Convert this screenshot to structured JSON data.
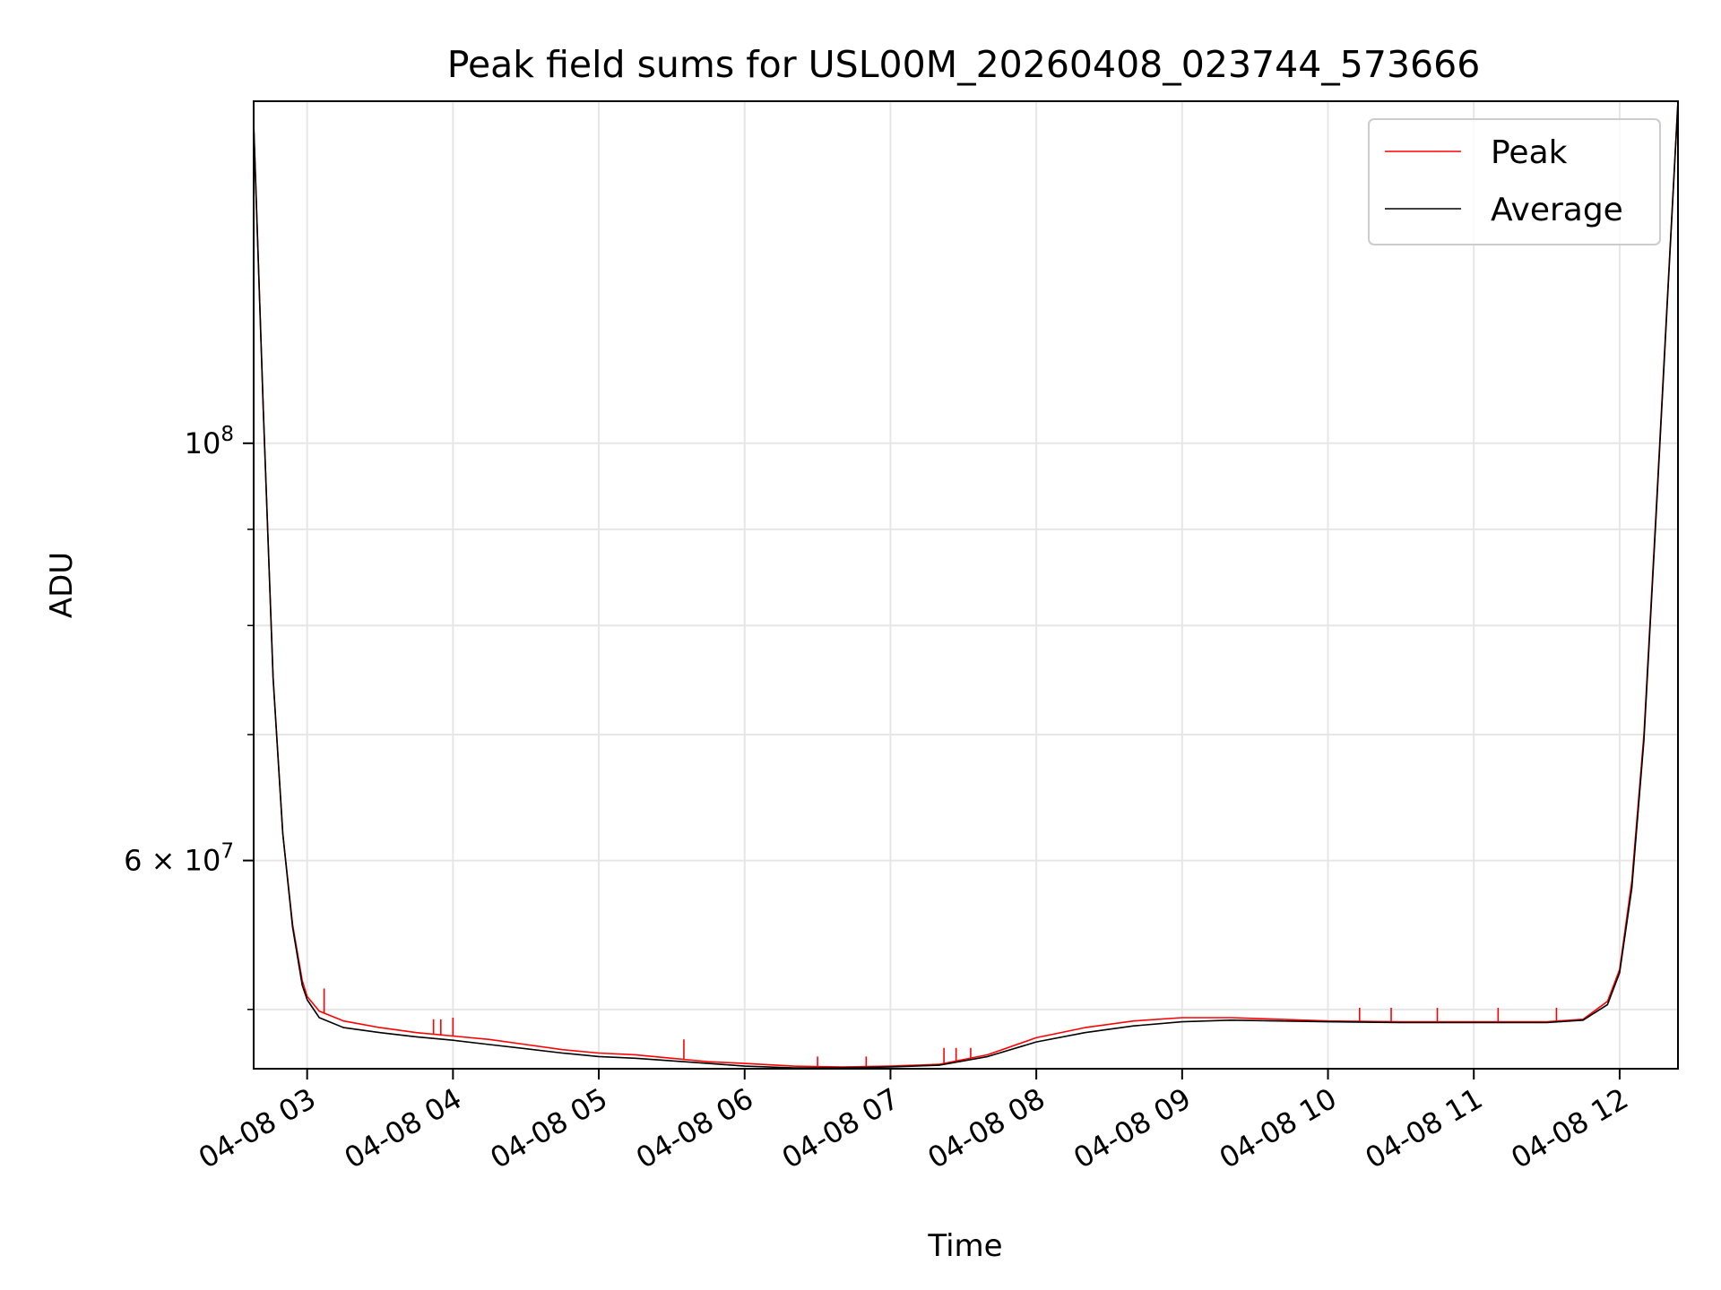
{
  "chart_data": {
    "type": "line",
    "title": "Peak field sums for USL00M_20260408_023744_573666",
    "xlabel": "Time",
    "ylabel": "ADU",
    "x_range": [
      "2026-04-08T02:38",
      "2026-04-08T12:24"
    ],
    "ylim": [
      46500000,
      152000000
    ],
    "yscale": "log",
    "grid": true,
    "legend_position": "top-right",
    "x_ticks": [
      {
        "t": "2026-04-08T03:00",
        "label": "04-08 03"
      },
      {
        "t": "2026-04-08T04:00",
        "label": "04-08 04"
      },
      {
        "t": "2026-04-08T05:00",
        "label": "04-08 05"
      },
      {
        "t": "2026-04-08T06:00",
        "label": "04-08 06"
      },
      {
        "t": "2026-04-08T07:00",
        "label": "04-08 07"
      },
      {
        "t": "2026-04-08T08:00",
        "label": "04-08 08"
      },
      {
        "t": "2026-04-08T09:00",
        "label": "04-08 09"
      },
      {
        "t": "2026-04-08T10:00",
        "label": "04-08 10"
      },
      {
        "t": "2026-04-08T11:00",
        "label": "04-08 11"
      },
      {
        "t": "2026-04-08T12:00",
        "label": "04-08 12"
      }
    ],
    "y_ticks_major": [
      {
        "v": 100000000,
        "base": "10",
        "exp": "8"
      },
      {
        "v": 60000000,
        "base": "6 × 10",
        "exp": "7"
      }
    ],
    "y_ticks_minor": [
      50000000,
      70000000,
      80000000,
      90000000
    ],
    "series": [
      {
        "name": "Peak",
        "color": "#ff0000",
        "points": [
          [
            "2026-04-08T02:38",
            148000000
          ],
          [
            "2026-04-08T02:42",
            104000000
          ],
          [
            "2026-04-08T02:46",
            75000000
          ],
          [
            "2026-04-08T02:50",
            62000000
          ],
          [
            "2026-04-08T02:54",
            55500000
          ],
          [
            "2026-04-08T02:58",
            51800000
          ],
          [
            "2026-04-08T03:00",
            50800000
          ],
          [
            "2026-04-08T03:05",
            49900000
          ],
          [
            "2026-04-08T03:15",
            49300000
          ],
          [
            "2026-04-08T03:30",
            48900000
          ],
          [
            "2026-04-08T03:45",
            48600000
          ],
          [
            "2026-04-08T04:00",
            48400000
          ],
          [
            "2026-04-08T04:15",
            48200000
          ],
          [
            "2026-04-08T04:30",
            47900000
          ],
          [
            "2026-04-08T04:45",
            47600000
          ],
          [
            "2026-04-08T05:00",
            47400000
          ],
          [
            "2026-04-08T05:15",
            47300000
          ],
          [
            "2026-04-08T05:30",
            47100000
          ],
          [
            "2026-04-08T05:45",
            46900000
          ],
          [
            "2026-04-08T06:00",
            46800000
          ],
          [
            "2026-04-08T06:20",
            46650000
          ],
          [
            "2026-04-08T06:40",
            46600000
          ],
          [
            "2026-04-08T07:00",
            46650000
          ],
          [
            "2026-04-08T07:20",
            46750000
          ],
          [
            "2026-04-08T07:40",
            47300000
          ],
          [
            "2026-04-08T08:00",
            48300000
          ],
          [
            "2026-04-08T08:20",
            48900000
          ],
          [
            "2026-04-08T08:40",
            49300000
          ],
          [
            "2026-04-08T09:00",
            49500000
          ],
          [
            "2026-04-08T09:20",
            49500000
          ],
          [
            "2026-04-08T09:40",
            49400000
          ],
          [
            "2026-04-08T10:00",
            49300000
          ],
          [
            "2026-04-08T10:30",
            49250000
          ],
          [
            "2026-04-08T11:00",
            49250000
          ],
          [
            "2026-04-08T11:30",
            49250000
          ],
          [
            "2026-04-08T11:45",
            49400000
          ],
          [
            "2026-04-08T11:55",
            50500000
          ],
          [
            "2026-04-08T12:00",
            52500000
          ],
          [
            "2026-04-08T12:05",
            58500000
          ],
          [
            "2026-04-08T12:10",
            70000000
          ],
          [
            "2026-04-08T12:15",
            92000000
          ],
          [
            "2026-04-08T12:20",
            122000000
          ],
          [
            "2026-04-08T12:24",
            152000000
          ]
        ]
      },
      {
        "name": "Average",
        "color": "#000000",
        "points": [
          [
            "2026-04-08T02:38",
            148000000
          ],
          [
            "2026-04-08T02:42",
            104000000
          ],
          [
            "2026-04-08T02:46",
            75000000
          ],
          [
            "2026-04-08T02:50",
            62000000
          ],
          [
            "2026-04-08T02:54",
            55300000
          ],
          [
            "2026-04-08T02:58",
            51500000
          ],
          [
            "2026-04-08T03:00",
            50600000
          ],
          [
            "2026-04-08T03:05",
            49500000
          ],
          [
            "2026-04-08T03:15",
            48900000
          ],
          [
            "2026-04-08T03:30",
            48600000
          ],
          [
            "2026-04-08T03:45",
            48350000
          ],
          [
            "2026-04-08T04:00",
            48150000
          ],
          [
            "2026-04-08T04:15",
            47900000
          ],
          [
            "2026-04-08T04:30",
            47650000
          ],
          [
            "2026-04-08T04:45",
            47400000
          ],
          [
            "2026-04-08T05:00",
            47200000
          ],
          [
            "2026-04-08T05:15",
            47100000
          ],
          [
            "2026-04-08T05:30",
            46950000
          ],
          [
            "2026-04-08T05:45",
            46800000
          ],
          [
            "2026-04-08T06:00",
            46650000
          ],
          [
            "2026-04-08T06:20",
            46550000
          ],
          [
            "2026-04-08T06:40",
            46550000
          ],
          [
            "2026-04-08T07:00",
            46600000
          ],
          [
            "2026-04-08T07:20",
            46700000
          ],
          [
            "2026-04-08T07:40",
            47200000
          ],
          [
            "2026-04-08T08:00",
            48050000
          ],
          [
            "2026-04-08T08:20",
            48600000
          ],
          [
            "2026-04-08T08:40",
            49000000
          ],
          [
            "2026-04-08T09:00",
            49250000
          ],
          [
            "2026-04-08T09:20",
            49350000
          ],
          [
            "2026-04-08T09:40",
            49300000
          ],
          [
            "2026-04-08T10:00",
            49250000
          ],
          [
            "2026-04-08T10:30",
            49200000
          ],
          [
            "2026-04-08T11:00",
            49200000
          ],
          [
            "2026-04-08T11:30",
            49200000
          ],
          [
            "2026-04-08T11:45",
            49350000
          ],
          [
            "2026-04-08T11:55",
            50300000
          ],
          [
            "2026-04-08T12:00",
            52300000
          ],
          [
            "2026-04-08T12:05",
            58000000
          ],
          [
            "2026-04-08T12:10",
            69500000
          ],
          [
            "2026-04-08T12:15",
            91500000
          ],
          [
            "2026-04-08T12:20",
            121500000
          ],
          [
            "2026-04-08T12:24",
            152000000
          ]
        ]
      }
    ],
    "peak_spikes": [
      [
        "2026-04-08T03:07",
        51300000
      ],
      [
        "2026-04-08T03:52",
        49400000
      ],
      [
        "2026-04-08T03:55",
        49400000
      ],
      [
        "2026-04-08T04:00",
        49500000
      ],
      [
        "2026-04-08T05:35",
        48200000
      ],
      [
        "2026-04-08T06:30",
        47200000
      ],
      [
        "2026-04-08T06:50",
        47200000
      ],
      [
        "2026-04-08T07:22",
        47700000
      ],
      [
        "2026-04-08T07:27",
        47700000
      ],
      [
        "2026-04-08T07:33",
        47700000
      ],
      [
        "2026-04-08T10:13",
        50100000
      ],
      [
        "2026-04-08T10:26",
        50100000
      ],
      [
        "2026-04-08T10:45",
        50100000
      ],
      [
        "2026-04-08T11:10",
        50100000
      ],
      [
        "2026-04-08T11:34",
        50100000
      ]
    ]
  }
}
